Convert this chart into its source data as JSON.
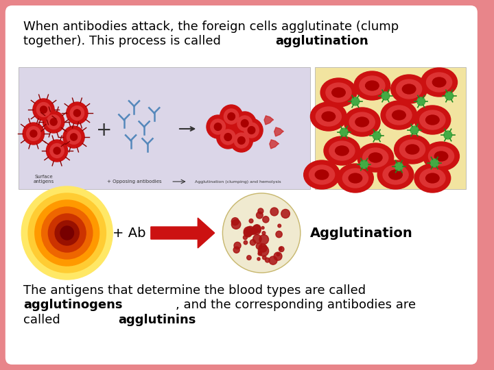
{
  "bg_outer": "#e8858a",
  "bg_inner": "#ffffff",
  "text_color": "#000000",
  "title_line1": "When antibodies attack, the foreign cells agglutinate (clump",
  "title_line2_normal": "together). This process is called ",
  "title_line2_bold": "agglutination",
  "title_line2_period": ".",
  "bottom_line1": "The antigens that determine the blood types are called",
  "bottom_line2_bold": "agglutinogens",
  "bottom_line2_normal": ", and the corresponding antibodies are",
  "bottom_line3_normal": "called ",
  "bottom_line3_bold": "agglutinins",
  "ab_label": "+ Ab",
  "agg_label": "Agglutination",
  "arrow_color": "#cc1111",
  "orange_cell_colors": [
    "#ffe866",
    "#ffcc33",
    "#ff9900",
    "#ee6600",
    "#cc3300",
    "#991100",
    "#770000"
  ],
  "orange_cell_radii": [
    68,
    58,
    48,
    38,
    28,
    18,
    10
  ],
  "rbc_outer": "#cc1111",
  "rbc_mid": "#dd3333",
  "rbc_inner": "#aa0000",
  "ab_color": "#5588bb",
  "green_color": "#44aa44",
  "left_bg": "#dbd6e8",
  "right_bg": "#f2e4a0",
  "font_size": 13
}
